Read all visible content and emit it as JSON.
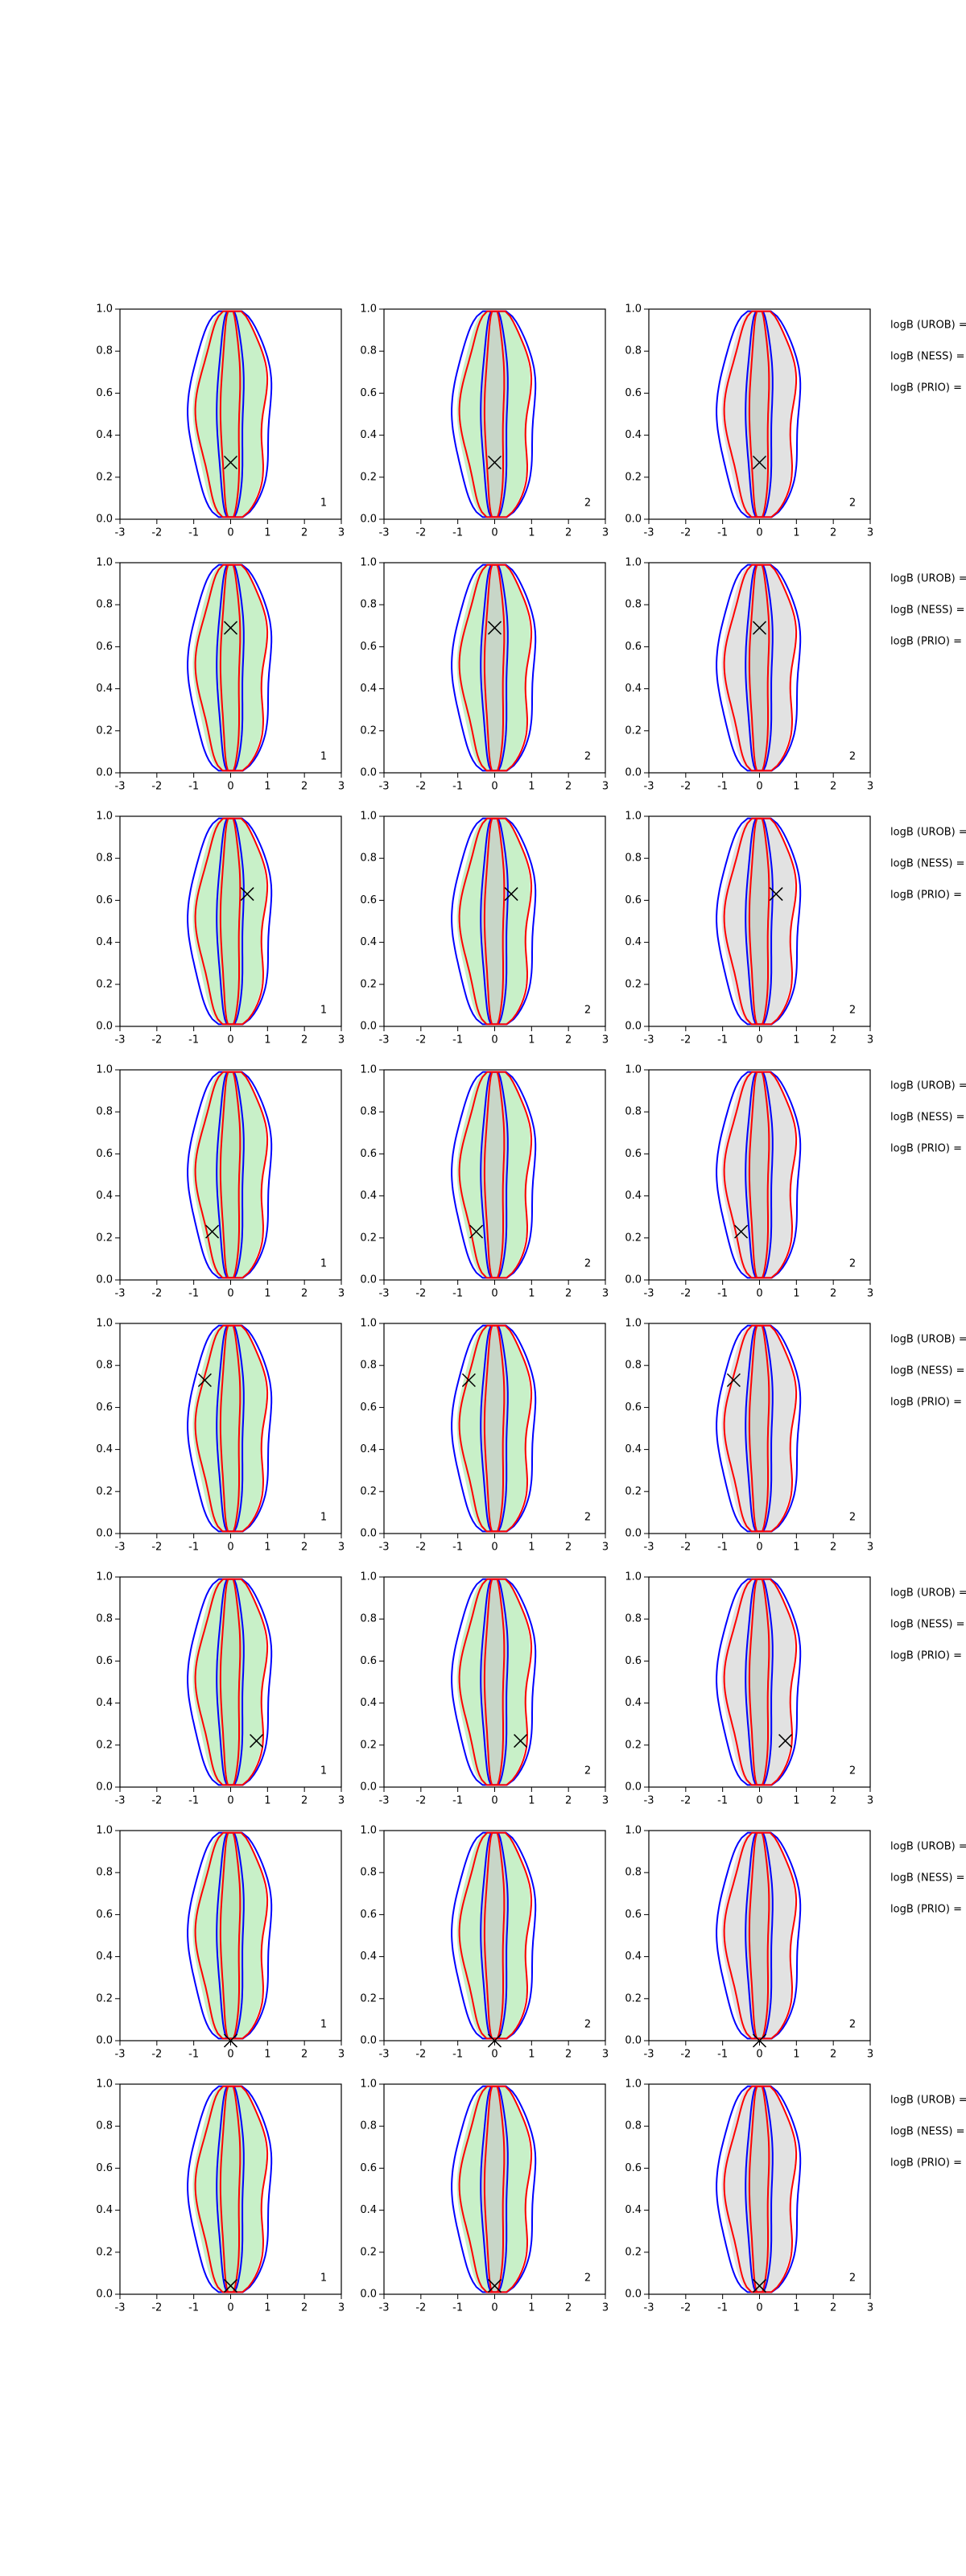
{
  "chart_data": [
    {
      "type": "contour",
      "x": [
        0
      ],
      "y": [
        0.27
      ],
      "panel_label": "1",
      "fill_color": "#c8f0c8",
      "xlim": [
        -3,
        3
      ],
      "ylim": [
        0,
        1
      ],
      "xticks": [
        -3,
        -2,
        -1,
        0,
        1,
        2,
        3
      ],
      "yticks": [
        {
          "value": 0,
          "label": "0.0"
        },
        {
          "value": 0.2,
          "label": "0.2"
        },
        {
          "value": 0.4,
          "label": "0.4"
        },
        {
          "value": 0.6,
          "label": "0.6"
        },
        {
          "value": 0.8,
          "label": "0.8"
        },
        {
          "value": 1,
          "label": "1.0"
        }
      ]
    },
    {
      "type": "contour",
      "x": [
        0
      ],
      "y": [
        0.27
      ],
      "panel_label": "2",
      "fill_color": "#c8f0c8",
      "xlim": [
        -3,
        3
      ],
      "ylim": [
        0,
        1
      ],
      "xticks": [
        -3,
        -2,
        -1,
        0,
        1,
        2,
        3
      ],
      "yticks": [
        {
          "value": 0,
          "label": "0.0"
        },
        {
          "value": 0.2,
          "label": "0.2"
        },
        {
          "value": 0.4,
          "label": "0.4"
        },
        {
          "value": 0.6,
          "label": "0.6"
        },
        {
          "value": 0.8,
          "label": "0.8"
        },
        {
          "value": 1,
          "label": "1.0"
        }
      ]
    },
    {
      "type": "contour",
      "x": [
        0
      ],
      "y": [
        0.27
      ],
      "panel_label": "2",
      "fill_color": "#e2e2e2",
      "xlim": [
        -3,
        3
      ],
      "ylim": [
        0,
        1
      ],
      "xticks": [
        -3,
        -2,
        -1,
        0,
        1,
        2,
        3
      ],
      "yticks": [
        {
          "value": 0,
          "label": "0.0"
        },
        {
          "value": 0.2,
          "label": "0.2"
        },
        {
          "value": 0.4,
          "label": "0.4"
        },
        {
          "value": 0.6,
          "label": "0.6"
        },
        {
          "value": 0.8,
          "label": "0.8"
        },
        {
          "value": 1,
          "label": "1.0"
        }
      ]
    },
    {
      "type": "contour",
      "x": [
        0
      ],
      "y": [
        0.69
      ],
      "panel_label": "1",
      "fill_color": "#c8f0c8",
      "xlim": [
        -3,
        3
      ],
      "ylim": [
        0,
        1
      ],
      "xticks": [
        -3,
        -2,
        -1,
        0,
        1,
        2,
        3
      ],
      "yticks": [
        {
          "value": 0,
          "label": "0.0"
        },
        {
          "value": 0.2,
          "label": "0.2"
        },
        {
          "value": 0.4,
          "label": "0.4"
        },
        {
          "value": 0.6,
          "label": "0.6"
        },
        {
          "value": 0.8,
          "label": "0.8"
        },
        {
          "value": 1,
          "label": "1.0"
        }
      ]
    },
    {
      "type": "contour",
      "x": [
        0
      ],
      "y": [
        0.69
      ],
      "panel_label": "2",
      "fill_color": "#c8f0c8",
      "xlim": [
        -3,
        3
      ],
      "ylim": [
        0,
        1
      ],
      "xticks": [
        -3,
        -2,
        -1,
        0,
        1,
        2,
        3
      ],
      "yticks": [
        {
          "value": 0,
          "label": "0.0"
        },
        {
          "value": 0.2,
          "label": "0.2"
        },
        {
          "value": 0.4,
          "label": "0.4"
        },
        {
          "value": 0.6,
          "label": "0.6"
        },
        {
          "value": 0.8,
          "label": "0.8"
        },
        {
          "value": 1,
          "label": "1.0"
        }
      ]
    },
    {
      "type": "contour",
      "x": [
        0
      ],
      "y": [
        0.69
      ],
      "panel_label": "2",
      "fill_color": "#e2e2e2",
      "xlim": [
        -3,
        3
      ],
      "ylim": [
        0,
        1
      ],
      "xticks": [
        -3,
        -2,
        -1,
        0,
        1,
        2,
        3
      ],
      "yticks": [
        {
          "value": 0,
          "label": "0.0"
        },
        {
          "value": 0.2,
          "label": "0.2"
        },
        {
          "value": 0.4,
          "label": "0.4"
        },
        {
          "value": 0.6,
          "label": "0.6"
        },
        {
          "value": 0.8,
          "label": "0.8"
        },
        {
          "value": 1,
          "label": "1.0"
        }
      ]
    },
    {
      "type": "contour",
      "x": [
        0.45
      ],
      "y": [
        0.63
      ],
      "panel_label": "1",
      "fill_color": "#c8f0c8",
      "xlim": [
        -3,
        3
      ],
      "ylim": [
        0,
        1
      ],
      "xticks": [
        -3,
        -2,
        -1,
        0,
        1,
        2,
        3
      ],
      "yticks": [
        {
          "value": 0,
          "label": "0.0"
        },
        {
          "value": 0.2,
          "label": "0.2"
        },
        {
          "value": 0.4,
          "label": "0.4"
        },
        {
          "value": 0.6,
          "label": "0.6"
        },
        {
          "value": 0.8,
          "label": "0.8"
        },
        {
          "value": 1,
          "label": "1.0"
        }
      ]
    },
    {
      "type": "contour",
      "x": [
        0.45
      ],
      "y": [
        0.63
      ],
      "panel_label": "2",
      "fill_color": "#c8f0c8",
      "xlim": [
        -3,
        3
      ],
      "ylim": [
        0,
        1
      ],
      "xticks": [
        -3,
        -2,
        -1,
        0,
        1,
        2,
        3
      ],
      "yticks": [
        {
          "value": 0,
          "label": "0.0"
        },
        {
          "value": 0.2,
          "label": "0.2"
        },
        {
          "value": 0.4,
          "label": "0.4"
        },
        {
          "value": 0.6,
          "label": "0.6"
        },
        {
          "value": 0.8,
          "label": "0.8"
        },
        {
          "value": 1,
          "label": "1.0"
        }
      ]
    },
    {
      "type": "contour",
      "x": [
        0.45
      ],
      "y": [
        0.63
      ],
      "panel_label": "2",
      "fill_color": "#e2e2e2",
      "xlim": [
        -3,
        3
      ],
      "ylim": [
        0,
        1
      ],
      "xticks": [
        -3,
        -2,
        -1,
        0,
        1,
        2,
        3
      ],
      "yticks": [
        {
          "value": 0,
          "label": "0.0"
        },
        {
          "value": 0.2,
          "label": "0.2"
        },
        {
          "value": 0.4,
          "label": "0.4"
        },
        {
          "value": 0.6,
          "label": "0.6"
        },
        {
          "value": 0.8,
          "label": "0.8"
        },
        {
          "value": 1,
          "label": "1.0"
        }
      ]
    },
    {
      "type": "contour",
      "x": [
        -0.5
      ],
      "y": [
        0.23
      ],
      "panel_label": "1",
      "fill_color": "#c8f0c8",
      "xlim": [
        -3,
        3
      ],
      "ylim": [
        0,
        1
      ],
      "xticks": [
        -3,
        -2,
        -1,
        0,
        1,
        2,
        3
      ],
      "yticks": [
        {
          "value": 0,
          "label": "0.0"
        },
        {
          "value": 0.2,
          "label": "0.2"
        },
        {
          "value": 0.4,
          "label": "0.4"
        },
        {
          "value": 0.6,
          "label": "0.6"
        },
        {
          "value": 0.8,
          "label": "0.8"
        },
        {
          "value": 1,
          "label": "1.0"
        }
      ]
    },
    {
      "type": "contour",
      "x": [
        -0.5
      ],
      "y": [
        0.23
      ],
      "panel_label": "2",
      "fill_color": "#c8f0c8",
      "xlim": [
        -3,
        3
      ],
      "ylim": [
        0,
        1
      ],
      "xticks": [
        -3,
        -2,
        -1,
        0,
        1,
        2,
        3
      ],
      "yticks": [
        {
          "value": 0,
          "label": "0.0"
        },
        {
          "value": 0.2,
          "label": "0.2"
        },
        {
          "value": 0.4,
          "label": "0.4"
        },
        {
          "value": 0.6,
          "label": "0.6"
        },
        {
          "value": 0.8,
          "label": "0.8"
        },
        {
          "value": 1,
          "label": "1.0"
        }
      ]
    },
    {
      "type": "contour",
      "x": [
        -0.5
      ],
      "y": [
        0.23
      ],
      "panel_label": "2",
      "fill_color": "#e2e2e2",
      "xlim": [
        -3,
        3
      ],
      "ylim": [
        0,
        1
      ],
      "xticks": [
        -3,
        -2,
        -1,
        0,
        1,
        2,
        3
      ],
      "yticks": [
        {
          "value": 0,
          "label": "0.0"
        },
        {
          "value": 0.2,
          "label": "0.2"
        },
        {
          "value": 0.4,
          "label": "0.4"
        },
        {
          "value": 0.6,
          "label": "0.6"
        },
        {
          "value": 0.8,
          "label": "0.8"
        },
        {
          "value": 1,
          "label": "1.0"
        }
      ]
    },
    {
      "type": "contour",
      "x": [
        -0.7
      ],
      "y": [
        0.73
      ],
      "panel_label": "1",
      "fill_color": "#c8f0c8",
      "xlim": [
        -3,
        3
      ],
      "ylim": [
        0,
        1
      ],
      "xticks": [
        -3,
        -2,
        -1,
        0,
        1,
        2,
        3
      ],
      "yticks": [
        {
          "value": 0,
          "label": "0.0"
        },
        {
          "value": 0.2,
          "label": "0.2"
        },
        {
          "value": 0.4,
          "label": "0.4"
        },
        {
          "value": 0.6,
          "label": "0.6"
        },
        {
          "value": 0.8,
          "label": "0.8"
        },
        {
          "value": 1,
          "label": "1.0"
        }
      ]
    },
    {
      "type": "contour",
      "x": [
        -0.7
      ],
      "y": [
        0.73
      ],
      "panel_label": "2",
      "fill_color": "#c8f0c8",
      "xlim": [
        -3,
        3
      ],
      "ylim": [
        0,
        1
      ],
      "xticks": [
        -3,
        -2,
        -1,
        0,
        1,
        2,
        3
      ],
      "yticks": [
        {
          "value": 0,
          "label": "0.0"
        },
        {
          "value": 0.2,
          "label": "0.2"
        },
        {
          "value": 0.4,
          "label": "0.4"
        },
        {
          "value": 0.6,
          "label": "0.6"
        },
        {
          "value": 0.8,
          "label": "0.8"
        },
        {
          "value": 1,
          "label": "1.0"
        }
      ]
    },
    {
      "type": "contour",
      "x": [
        -0.7
      ],
      "y": [
        0.73
      ],
      "panel_label": "2",
      "fill_color": "#e2e2e2",
      "xlim": [
        -3,
        3
      ],
      "ylim": [
        0,
        1
      ],
      "xticks": [
        -3,
        -2,
        -1,
        0,
        1,
        2,
        3
      ],
      "yticks": [
        {
          "value": 0,
          "label": "0.0"
        },
        {
          "value": 0.2,
          "label": "0.2"
        },
        {
          "value": 0.4,
          "label": "0.4"
        },
        {
          "value": 0.6,
          "label": "0.6"
        },
        {
          "value": 0.8,
          "label": "0.8"
        },
        {
          "value": 1,
          "label": "1.0"
        }
      ]
    },
    {
      "type": "contour",
      "x": [
        0.7
      ],
      "y": [
        0.22
      ],
      "panel_label": "1",
      "fill_color": "#c8f0c8",
      "xlim": [
        -3,
        3
      ],
      "ylim": [
        0,
        1
      ],
      "xticks": [
        -3,
        -2,
        -1,
        0,
        1,
        2,
        3
      ],
      "yticks": [
        {
          "value": 0,
          "label": "0.0"
        },
        {
          "value": 0.2,
          "label": "0.2"
        },
        {
          "value": 0.4,
          "label": "0.4"
        },
        {
          "value": 0.6,
          "label": "0.6"
        },
        {
          "value": 0.8,
          "label": "0.8"
        },
        {
          "value": 1,
          "label": "1.0"
        }
      ]
    },
    {
      "type": "contour",
      "x": [
        0.7
      ],
      "y": [
        0.22
      ],
      "panel_label": "2",
      "fill_color": "#c8f0c8",
      "xlim": [
        -3,
        3
      ],
      "ylim": [
        0,
        1
      ],
      "xticks": [
        -3,
        -2,
        -1,
        0,
        1,
        2,
        3
      ],
      "yticks": [
        {
          "value": 0,
          "label": "0.0"
        },
        {
          "value": 0.2,
          "label": "0.2"
        },
        {
          "value": 0.4,
          "label": "0.4"
        },
        {
          "value": 0.6,
          "label": "0.6"
        },
        {
          "value": 0.8,
          "label": "0.8"
        },
        {
          "value": 1,
          "label": "1.0"
        }
      ]
    },
    {
      "type": "contour",
      "x": [
        0.7
      ],
      "y": [
        0.22
      ],
      "panel_label": "2",
      "fill_color": "#e2e2e2",
      "xlim": [
        -3,
        3
      ],
      "ylim": [
        0,
        1
      ],
      "xticks": [
        -3,
        -2,
        -1,
        0,
        1,
        2,
        3
      ],
      "yticks": [
        {
          "value": 0,
          "label": "0.0"
        },
        {
          "value": 0.2,
          "label": "0.2"
        },
        {
          "value": 0.4,
          "label": "0.4"
        },
        {
          "value": 0.6,
          "label": "0.6"
        },
        {
          "value": 0.8,
          "label": "0.8"
        },
        {
          "value": 1,
          "label": "1.0"
        }
      ]
    },
    {
      "type": "contour",
      "x": [
        0
      ],
      "y": [
        0
      ],
      "panel_label": "1",
      "fill_color": "#c8f0c8",
      "xlim": [
        -3,
        3
      ],
      "ylim": [
        0,
        1
      ],
      "xticks": [
        -3,
        -2,
        -1,
        0,
        1,
        2,
        3
      ],
      "yticks": [
        {
          "value": 0,
          "label": "0.0"
        },
        {
          "value": 0.2,
          "label": "0.2"
        },
        {
          "value": 0.4,
          "label": "0.4"
        },
        {
          "value": 0.6,
          "label": "0.6"
        },
        {
          "value": 0.8,
          "label": "0.8"
        },
        {
          "value": 1,
          "label": "1.0"
        }
      ]
    },
    {
      "type": "contour",
      "x": [
        0
      ],
      "y": [
        0
      ],
      "panel_label": "2",
      "fill_color": "#c8f0c8",
      "xlim": [
        -3,
        3
      ],
      "ylim": [
        0,
        1
      ],
      "xticks": [
        -3,
        -2,
        -1,
        0,
        1,
        2,
        3
      ],
      "yticks": [
        {
          "value": 0,
          "label": "0.0"
        },
        {
          "value": 0.2,
          "label": "0.2"
        },
        {
          "value": 0.4,
          "label": "0.4"
        },
        {
          "value": 0.6,
          "label": "0.6"
        },
        {
          "value": 0.8,
          "label": "0.8"
        },
        {
          "value": 1,
          "label": "1.0"
        }
      ]
    },
    {
      "type": "contour",
      "x": [
        0
      ],
      "y": [
        0
      ],
      "panel_label": "2",
      "fill_color": "#e2e2e2",
      "xlim": [
        -3,
        3
      ],
      "ylim": [
        0,
        1
      ],
      "xticks": [
        -3,
        -2,
        -1,
        0,
        1,
        2,
        3
      ],
      "yticks": [
        {
          "value": 0,
          "label": "0.0"
        },
        {
          "value": 0.2,
          "label": "0.2"
        },
        {
          "value": 0.4,
          "label": "0.4"
        },
        {
          "value": 0.6,
          "label": "0.6"
        },
        {
          "value": 0.8,
          "label": "0.8"
        },
        {
          "value": 1,
          "label": "1.0"
        }
      ]
    },
    {
      "type": "contour",
      "x": [
        0
      ],
      "y": [
        0.04
      ],
      "panel_label": "1",
      "fill_color": "#c8f0c8",
      "xlim": [
        -3,
        3
      ],
      "ylim": [
        0,
        1
      ],
      "xticks": [
        -3,
        -2,
        -1,
        0,
        1,
        2,
        3
      ],
      "yticks": [
        {
          "value": 0,
          "label": "0.0"
        },
        {
          "value": 0.2,
          "label": "0.2"
        },
        {
          "value": 0.4,
          "label": "0.4"
        },
        {
          "value": 0.6,
          "label": "0.6"
        },
        {
          "value": 0.8,
          "label": "0.8"
        },
        {
          "value": 1,
          "label": "1.0"
        }
      ]
    },
    {
      "type": "contour",
      "x": [
        0
      ],
      "y": [
        0.04
      ],
      "panel_label": "2",
      "fill_color": "#c8f0c8",
      "xlim": [
        -3,
        3
      ],
      "ylim": [
        0,
        1
      ],
      "xticks": [
        -3,
        -2,
        -1,
        0,
        1,
        2,
        3
      ],
      "yticks": [
        {
          "value": 0,
          "label": "0.0"
        },
        {
          "value": 0.2,
          "label": "0.2"
        },
        {
          "value": 0.4,
          "label": "0.4"
        },
        {
          "value": 0.6,
          "label": "0.6"
        },
        {
          "value": 0.8,
          "label": "0.8"
        },
        {
          "value": 1,
          "label": "1.0"
        }
      ]
    },
    {
      "type": "contour",
      "x": [
        0
      ],
      "y": [
        0.04
      ],
      "panel_label": "2",
      "fill_color": "#e2e2e2",
      "xlim": [
        -3,
        3
      ],
      "ylim": [
        0,
        1
      ],
      "xticks": [
        -3,
        -2,
        -1,
        0,
        1,
        2,
        3
      ],
      "yticks": [
        {
          "value": 0,
          "label": "0.0"
        },
        {
          "value": 0.2,
          "label": "0.2"
        },
        {
          "value": 0.4,
          "label": "0.4"
        },
        {
          "value": 0.6,
          "label": "0.6"
        },
        {
          "value": 0.8,
          "label": "0.8"
        },
        {
          "value": 1,
          "label": "1.0"
        }
      ]
    }
  ],
  "side_notes": [
    [
      "logB (UROB) =",
      "logB (NESS) =",
      "logB (PRIO) ="
    ],
    [
      "logB (UROB) =",
      "logB (NESS) =",
      "logB (PRIO) ="
    ],
    [
      "logB (UROB) =",
      "logB (NESS) =",
      "logB (PRIO) ="
    ],
    [
      "logB (UROB) =",
      "logB (NESS) =",
      "logB (PRIO) ="
    ],
    [
      "logB (UROB) =",
      "logB (NESS) =",
      "logB (PRIO) ="
    ],
    [
      "logB (UROB) =",
      "logB (NESS) =",
      "logB (PRIO) ="
    ],
    [
      "logB (UROB) =",
      "logB (NESS) =",
      "logB (PRIO) ="
    ],
    [
      "logB (UROB) =",
      "logB (NESS) =",
      "logB (PRIO) ="
    ]
  ]
}
